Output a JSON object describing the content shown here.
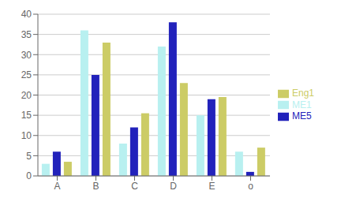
{
  "chart_data": {
    "type": "bar",
    "categories": [
      "A",
      "B",
      "C",
      "D",
      "E",
      "o"
    ],
    "series": [
      {
        "name": "ME1",
        "color": "#b8f0f0",
        "values": [
          3,
          36,
          8,
          32,
          15,
          6
        ]
      },
      {
        "name": "ME5",
        "color": "#2222bb",
        "values": [
          6,
          25,
          12,
          38,
          19,
          1
        ]
      },
      {
        "name": "Eng1",
        "color": "#cccc66",
        "values": [
          3.5,
          33,
          15.5,
          23,
          19.5,
          7
        ]
      }
    ],
    "ylim": [
      0,
      40
    ],
    "yticks": [
      0,
      5,
      10,
      15,
      20,
      25,
      30,
      35,
      40
    ],
    "grid": true,
    "legend": "right"
  }
}
